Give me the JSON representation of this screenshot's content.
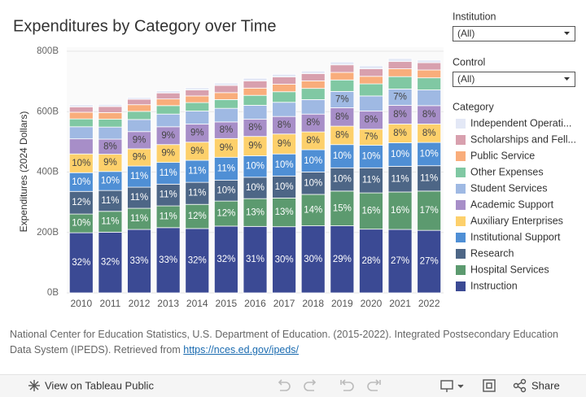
{
  "chart_data": {
    "type": "bar",
    "stacked": true,
    "title": "Expenditures by Category over Time",
    "y_label": "Expenditures (2024 Dollars)",
    "categories": [
      "2010",
      "2011",
      "2012",
      "2013",
      "2014",
      "2015",
      "2016",
      "2017",
      "2018",
      "2019",
      "2020",
      "2021",
      "2022"
    ],
    "ylim": [
      0,
      800
    ],
    "yticks": [
      {
        "value": 0,
        "label": "0B"
      },
      {
        "value": 200,
        "label": "200B"
      },
      {
        "value": 400,
        "label": "400B"
      },
      {
        "value": 600,
        "label": "600B"
      },
      {
        "value": 800,
        "label": "800B"
      }
    ],
    "grid": true,
    "series": [
      {
        "name": "Instruction",
        "color": "#3b4a94",
        "values": [
          199,
          201,
          210,
          216,
          213,
          221,
          220,
          219,
          222,
          222,
          211,
          210,
          207
        ],
        "percent_labels": [
          "32%",
          "32%",
          "33%",
          "33%",
          "32%",
          "32%",
          "31%",
          "30%",
          "30%",
          "29%",
          "28%",
          "27%",
          "27%"
        ]
      },
      {
        "name": "Hospital Services",
        "color": "#5c9a6f",
        "values": [
          62,
          69,
          70,
          72,
          80,
          83,
          92,
          95,
          104,
          115,
          120,
          124,
          130
        ],
        "percent_labels": [
          "10%",
          "11%",
          "11%",
          "11%",
          "12%",
          "12%",
          "13%",
          "13%",
          "14%",
          "15%",
          "16%",
          "16%",
          "17%"
        ]
      },
      {
        "name": "Research",
        "color": "#4d6686",
        "values": [
          75,
          69,
          70,
          72,
          73,
          69,
          71,
          73,
          74,
          77,
          83,
          85,
          84
        ],
        "percent_labels": [
          "12%",
          "11%",
          "11%",
          "11%",
          "11%",
          "10%",
          "10%",
          "10%",
          "10%",
          "10%",
          "11%",
          "11%",
          "11%"
        ]
      },
      {
        "name": "Institutional Support",
        "color": "#4f8fd5",
        "values": [
          62,
          63,
          70,
          72,
          73,
          76,
          71,
          73,
          74,
          77,
          75,
          78,
          77
        ],
        "percent_labels": [
          "10%",
          "10%",
          "11%",
          "11%",
          "11%",
          "11%",
          "10%",
          "10%",
          "10%",
          "10%",
          "10%",
          "10%",
          "10%"
        ]
      },
      {
        "name": "Auxiliary Enterprises",
        "color": "#fdd06b",
        "values": [
          62,
          57,
          57,
          59,
          60,
          62,
          64,
          66,
          59,
          61,
          53,
          62,
          61
        ],
        "percent_labels": [
          "10%",
          "9%",
          "9%",
          "9%",
          "9%",
          "9%",
          "9%",
          "9%",
          "8%",
          "8%",
          "7%",
          "8%",
          "8%"
        ]
      },
      {
        "name": "Academic Support",
        "color": "#a78ec8",
        "values": [
          50,
          50,
          57,
          59,
          60,
          55,
          57,
          58,
          59,
          61,
          60,
          62,
          61
        ],
        "percent_labels": [
          null,
          "8%",
          "9%",
          "9%",
          "9%",
          "8%",
          "8%",
          "8%",
          "8%",
          "8%",
          "8%",
          "8%",
          "8%"
        ]
      },
      {
        "name": "Student Services",
        "color": "#9fb9e3",
        "values": [
          40,
          40,
          40,
          42,
          43,
          45,
          46,
          47,
          48,
          54,
          50,
          54,
          52
        ],
        "percent_labels": [
          null,
          null,
          null,
          null,
          null,
          null,
          null,
          null,
          null,
          "7%",
          null,
          "7%",
          null
        ]
      },
      {
        "name": "Other Expenses",
        "color": "#80c8a3",
        "values": [
          26,
          26,
          27,
          28,
          28,
          29,
          33,
          35,
          37,
          38,
          40,
          41,
          40
        ]
      },
      {
        "name": "Public Service",
        "color": "#f9ad7b",
        "values": [
          22,
          22,
          22,
          22,
          22,
          23,
          24,
          25,
          25,
          25,
          25,
          26,
          26
        ]
      },
      {
        "name": "Scholarships and Fell...",
        "color": "#d8a0ae",
        "values": [
          18,
          20,
          18,
          20,
          20,
          24,
          24,
          24,
          24,
          25,
          25,
          24,
          24
        ]
      },
      {
        "name": "Independent Operati...",
        "color": "#e3e8f6",
        "values": [
          7,
          7,
          6,
          7,
          7,
          8,
          9,
          9,
          9,
          10,
          10,
          10,
          9
        ]
      }
    ]
  },
  "filters": [
    {
      "label": "Institution",
      "value": "(All)"
    },
    {
      "label": "Control",
      "value": "(All)"
    }
  ],
  "legend_title": "Category",
  "source": {
    "text": "National Center for Education Statistics, U.S. Department of Education. (2015-2022). Integrated Postsecondary Education Data System (IPEDS). Retrieved from ",
    "link": "https://nces.ed.gov/ipeds/"
  },
  "toolbar": {
    "view": "View on Tableau Public",
    "share": "Share"
  }
}
